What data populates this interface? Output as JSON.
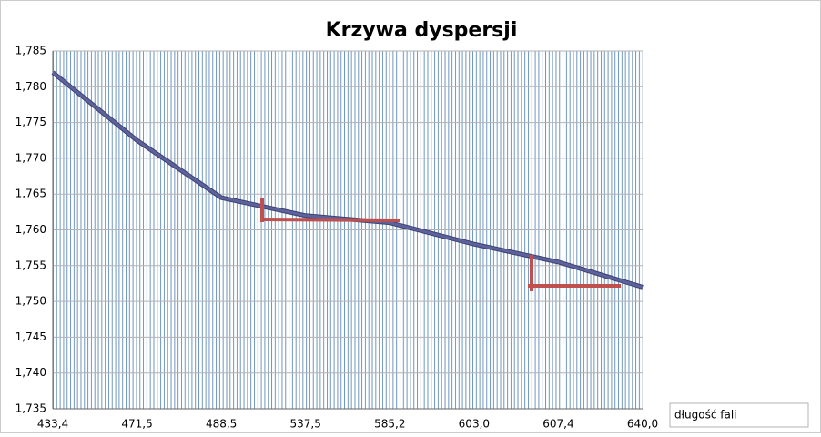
{
  "chart_data": {
    "type": "line",
    "title": "Krzywa dyspersji",
    "categories": [
      "433,4",
      "471,5",
      "488,5",
      "537,5",
      "585,2",
      "603,0",
      "607,4",
      "640,0"
    ],
    "series": [
      {
        "name": "długość fali",
        "color": "#5d629c",
        "values": [
          1.782,
          1.7725,
          1.7645,
          1.762,
          1.761,
          1.758,
          1.7555,
          1.752
        ]
      }
    ],
    "ylim": [
      1.735,
      1.785
    ],
    "yticks": [
      {
        "value": 1.735,
        "label": "1,735"
      },
      {
        "value": 1.74,
        "label": "1,740"
      },
      {
        "value": 1.745,
        "label": "1,745"
      },
      {
        "value": 1.75,
        "label": "1,750"
      },
      {
        "value": 1.755,
        "label": "1,755"
      },
      {
        "value": 1.76,
        "label": "1,760"
      },
      {
        "value": 1.765,
        "label": "1,765"
      },
      {
        "value": 1.77,
        "label": "1,770"
      },
      {
        "value": 1.775,
        "label": "1,775"
      },
      {
        "value": 1.78,
        "label": "1,780"
      },
      {
        "value": 1.785,
        "label": "1,785"
      }
    ],
    "grid": true
  }
}
